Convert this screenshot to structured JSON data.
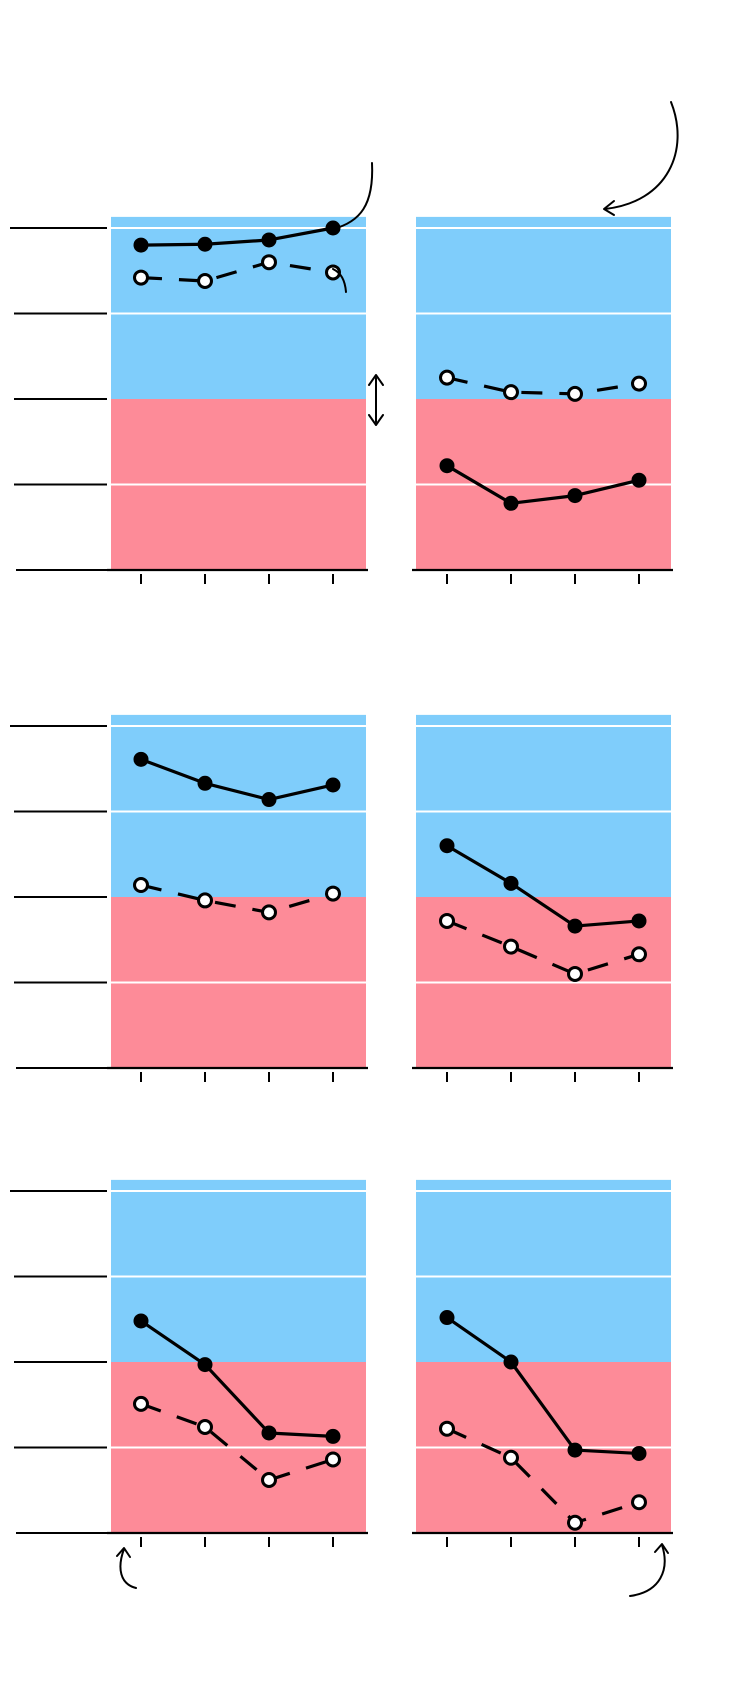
{
  "colors": {
    "above_zone": "#7fcdfb",
    "below_zone": "#fd8b98",
    "gridline": "#ffffff",
    "line": "#000000",
    "marker_outline": "#000000",
    "open_marker_fill": "#ffffff"
  },
  "chart_data": [
    {
      "type": "line",
      "categories": [
        "",
        "",
        "",
        ""
      ],
      "ylim": [
        0,
        4.13
      ],
      "threshold": 2,
      "grid": true,
      "series": [
        {
          "style": "solid",
          "marker": "filled",
          "values": [
            3.8,
            3.81,
            3.86,
            4.0
          ]
        },
        {
          "style": "dashed",
          "marker": "open",
          "values": [
            3.42,
            3.38,
            3.6,
            3.48
          ]
        }
      ],
      "annotations": [
        "curved-arrow",
        "double-arrow"
      ]
    },
    {
      "type": "line",
      "categories": [
        "",
        "",
        "",
        ""
      ],
      "ylim": [
        0,
        4.13
      ],
      "threshold": 2,
      "grid": true,
      "series": [
        {
          "style": "solid",
          "marker": "filled",
          "values": [
            1.22,
            0.78,
            0.87,
            1.05
          ]
        },
        {
          "style": "dashed",
          "marker": "open",
          "values": [
            2.25,
            2.08,
            2.06,
            2.18
          ]
        }
      ],
      "annotations": [
        "curved-arrow"
      ]
    },
    {
      "type": "line",
      "categories": [
        "",
        "",
        "",
        ""
      ],
      "ylim": [
        0,
        4.13
      ],
      "threshold": 2,
      "grid": true,
      "series": [
        {
          "style": "solid",
          "marker": "filled",
          "values": [
            3.61,
            3.33,
            3.14,
            3.31
          ]
        },
        {
          "style": "dashed",
          "marker": "open",
          "values": [
            2.14,
            1.96,
            1.82,
            2.04
          ]
        }
      ]
    },
    {
      "type": "line",
      "categories": [
        "",
        "",
        "",
        ""
      ],
      "ylim": [
        0,
        4.13
      ],
      "threshold": 2,
      "grid": true,
      "series": [
        {
          "style": "solid",
          "marker": "filled",
          "values": [
            2.6,
            2.16,
            1.66,
            1.72
          ]
        },
        {
          "style": "dashed",
          "marker": "open",
          "values": [
            1.72,
            1.42,
            1.1,
            1.33
          ]
        }
      ]
    },
    {
      "type": "line",
      "categories": [
        "",
        "",
        "",
        ""
      ],
      "ylim": [
        0,
        4.13
      ],
      "threshold": 2,
      "grid": true,
      "series": [
        {
          "style": "solid",
          "marker": "filled",
          "values": [
            2.48,
            1.97,
            1.17,
            1.13
          ]
        },
        {
          "style": "dashed",
          "marker": "open",
          "values": [
            1.51,
            1.24,
            0.62,
            0.86
          ]
        }
      ],
      "annotations": [
        "curved-arrow"
      ]
    },
    {
      "type": "line",
      "categories": [
        "",
        "",
        "",
        ""
      ],
      "ylim": [
        0,
        4.13
      ],
      "threshold": 2,
      "grid": true,
      "series": [
        {
          "style": "solid",
          "marker": "filled",
          "values": [
            2.52,
            2.0,
            0.97,
            0.93
          ]
        },
        {
          "style": "dashed",
          "marker": "open",
          "values": [
            1.22,
            0.88,
            0.12,
            0.36
          ]
        }
      ],
      "annotations": [
        "curved-arrow"
      ]
    }
  ]
}
